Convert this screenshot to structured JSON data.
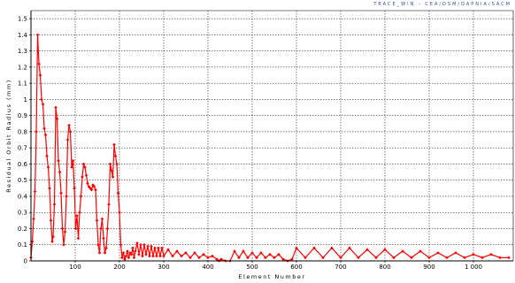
{
  "credit": "TRACE_WIN - CEA/DSM/DAPNIA/SACM",
  "chart_data": {
    "type": "line",
    "title": "",
    "xlabel": "Element Number",
    "ylabel": "Residual Orbit Radius (mm)",
    "xlim": [
      0,
      1090
    ],
    "ylim": [
      0,
      1.55
    ],
    "grid": true,
    "line_color": "#ff0000",
    "marker": "diamond",
    "x_ticks": [
      100,
      200,
      300,
      400,
      500,
      600,
      700,
      800,
      900,
      1000
    ],
    "x_tick_labels": [
      "100",
      "200",
      "300",
      "400",
      "500",
      "600",
      "700",
      "800",
      "900",
      "1 000"
    ],
    "y_ticks": [
      0,
      0.1,
      0.2,
      0.3,
      0.4,
      0.5,
      0.6,
      0.7,
      0.8,
      0.9,
      1.0,
      1.1,
      1.2,
      1.3,
      1.4,
      1.5
    ],
    "y_tick_labels": [
      "0",
      "0.1",
      "0.2",
      "0.3",
      "0.4",
      "0.5",
      "0.6",
      "0.7",
      "0.8",
      "0.9",
      "1",
      "1.1",
      "1.2",
      "1.3",
      "1.4",
      "1.5"
    ],
    "series": [
      {
        "x": [
          0,
          3,
          6,
          9,
          12,
          15,
          18,
          21,
          24,
          27,
          30,
          33,
          36,
          39,
          42,
          45,
          48,
          50,
          53,
          56,
          59,
          62,
          65,
          68,
          71,
          74,
          77,
          80,
          83,
          86,
          89,
          92,
          95,
          98,
          101,
          104,
          107,
          110,
          113,
          116,
          119,
          122,
          125,
          128,
          131,
          134,
          137,
          140,
          143,
          146,
          149,
          152,
          155,
          158,
          161,
          164,
          167,
          170,
          173,
          176,
          179,
          182,
          185,
          188,
          191,
          194,
          197,
          200,
          203,
          206,
          209,
          212,
          215,
          218,
          221,
          224,
          227,
          230,
          233,
          236,
          240,
          244,
          248,
          252,
          256,
          260,
          264,
          268,
          272,
          276,
          280,
          284,
          288,
          292,
          296,
          300,
          310,
          320,
          330,
          340,
          350,
          360,
          370,
          380,
          390,
          400,
          410,
          420,
          425,
          430,
          440,
          450,
          460,
          470,
          480,
          490,
          500,
          510,
          520,
          530,
          540,
          550,
          560,
          570,
          580,
          590,
          600,
          620,
          640,
          660,
          680,
          700,
          720,
          740,
          760,
          780,
          800,
          820,
          840,
          860,
          880,
          900,
          920,
          940,
          960,
          980,
          1000,
          1020,
          1040,
          1060,
          1080
        ],
        "y": [
          0.02,
          0.12,
          0.26,
          0.43,
          0.8,
          1.4,
          1.22,
          1.15,
          1.0,
          0.97,
          0.82,
          0.78,
          0.65,
          0.58,
          0.45,
          0.25,
          0.12,
          0.15,
          0.35,
          0.95,
          0.88,
          0.62,
          0.55,
          0.42,
          0.2,
          0.1,
          0.18,
          0.4,
          0.75,
          0.84,
          0.8,
          0.58,
          0.62,
          0.45,
          0.2,
          0.28,
          0.14,
          0.3,
          0.4,
          0.52,
          0.6,
          0.58,
          0.53,
          0.48,
          0.46,
          0.45,
          0.44,
          0.47,
          0.46,
          0.44,
          0.25,
          0.1,
          0.05,
          0.2,
          0.26,
          0.14,
          0.05,
          0.08,
          0.2,
          0.35,
          0.6,
          0.56,
          0.52,
          0.72,
          0.65,
          0.6,
          0.42,
          0.3,
          0.1,
          0.02,
          0.05,
          0.01,
          0.03,
          0.06,
          0.02,
          0.05,
          0.04,
          0.08,
          0.02,
          0.06,
          0.11,
          0.04,
          0.1,
          0.03,
          0.1,
          0.04,
          0.09,
          0.03,
          0.09,
          0.03,
          0.08,
          0.03,
          0.08,
          0.03,
          0.08,
          0.03,
          0.07,
          0.03,
          0.06,
          0.03,
          0.05,
          0.02,
          0.05,
          0.02,
          0.04,
          0.02,
          0.03,
          0.01,
          0.0,
          0.01,
          0.0,
          0.0,
          0.06,
          0.02,
          0.06,
          0.02,
          0.05,
          0.02,
          0.05,
          0.02,
          0.04,
          0.02,
          0.04,
          0.01,
          0.0,
          0.01,
          0.08,
          0.02,
          0.08,
          0.02,
          0.08,
          0.02,
          0.08,
          0.02,
          0.07,
          0.02,
          0.07,
          0.02,
          0.06,
          0.02,
          0.06,
          0.02,
          0.05,
          0.02,
          0.05,
          0.02,
          0.04,
          0.02,
          0.04,
          0.02,
          0.02
        ]
      }
    ]
  }
}
